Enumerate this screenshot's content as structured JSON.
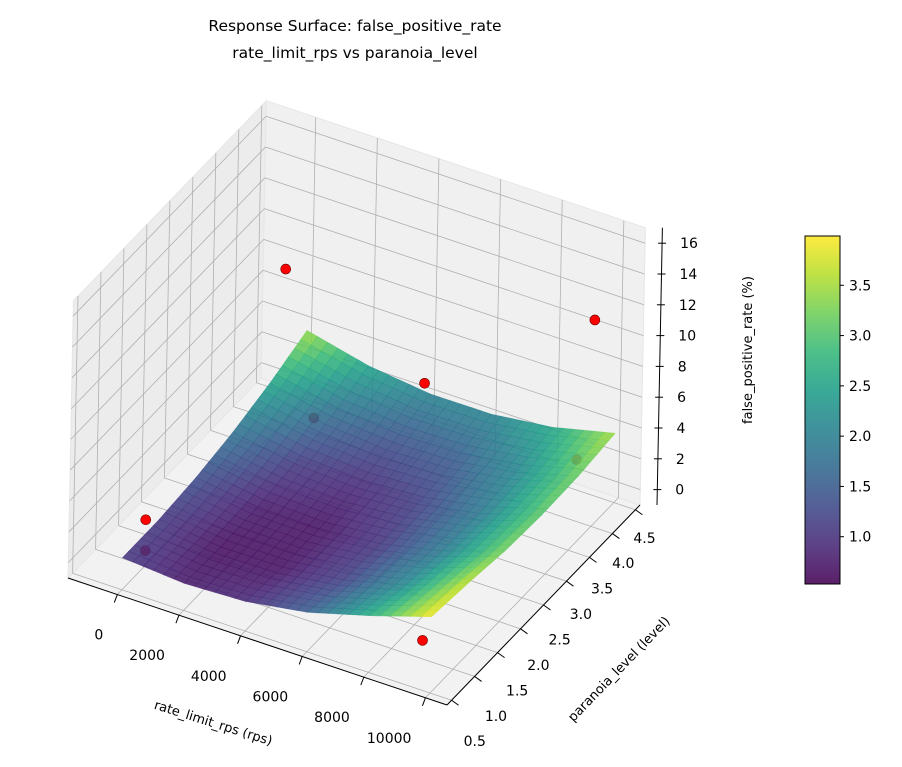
{
  "chart_data": {
    "type": "surface3d",
    "title": "Response Surface: false_positive_rate",
    "subtitle": "rate_limit_rps vs paranoia_level",
    "xlabel": "rate_limit_rps (rps)",
    "ylabel": "paranoia_level (level)",
    "zlabel": "false_positive_rate (%)",
    "xlim": [
      -1600,
      10700
    ],
    "ylim": [
      0.4,
      4.6
    ],
    "zlim": [
      -1,
      17
    ],
    "x_ticks": [
      "0",
      "2000",
      "4000",
      "6000",
      "8000",
      "10000"
    ],
    "y_ticks": [
      "0.5",
      "1.0",
      "1.5",
      "2.0",
      "2.5",
      "3.0",
      "3.5",
      "4.0",
      "4.5"
    ],
    "z_ticks": [
      "0",
      "2",
      "4",
      "6",
      "8",
      "10",
      "12",
      "14",
      "16"
    ],
    "grid": true,
    "colormap": "viridis",
    "surface": {
      "x": [
        0,
        2000,
        4000,
        6000,
        8000,
        10000
      ],
      "y": [
        0.5,
        1.3,
        2.1,
        2.9,
        3.7,
        4.5
      ],
      "z": [
        [
          1.08,
          0.76,
          0.92,
          1.56,
          2.68,
          3.95
        ],
        [
          1.1,
          0.65,
          0.68,
          1.19,
          2.19,
          3.66
        ],
        [
          1.35,
          0.77,
          0.68,
          1.06,
          1.93,
          3.27
        ],
        [
          1.82,
          1.12,
          0.9,
          1.16,
          1.9,
          3.12
        ],
        [
          2.53,
          1.71,
          1.36,
          1.49,
          2.1,
          3.19
        ],
        [
          3.47,
          2.52,
          2.04,
          2.05,
          2.54,
          3.5
        ]
      ]
    },
    "points": [
      {
        "x": 0,
        "y": 4.0,
        "z": 9.0
      },
      {
        "x": 6000,
        "y": 3.0,
        "z": 8.7
      },
      {
        "x": 10000,
        "y": 4.0,
        "z": 12.4
      },
      {
        "x": 1000,
        "y": 4.0,
        "z": 0.0
      },
      {
        "x": 0,
        "y": 1.0,
        "z": 0.0
      },
      {
        "x": 0,
        "y": 1.0,
        "z": 2.0
      },
      {
        "x": 9500,
        "y": 4.0,
        "z": 3.0
      },
      {
        "x": 9000,
        "y": 1.0,
        "z": 0.2
      }
    ],
    "point_color": "#ff0000",
    "colorbar": {
      "range": [
        0.53,
        3.99
      ],
      "ticks": [
        "1.0",
        "1.5",
        "2.0",
        "2.5",
        "3.0",
        "3.5"
      ]
    }
  }
}
